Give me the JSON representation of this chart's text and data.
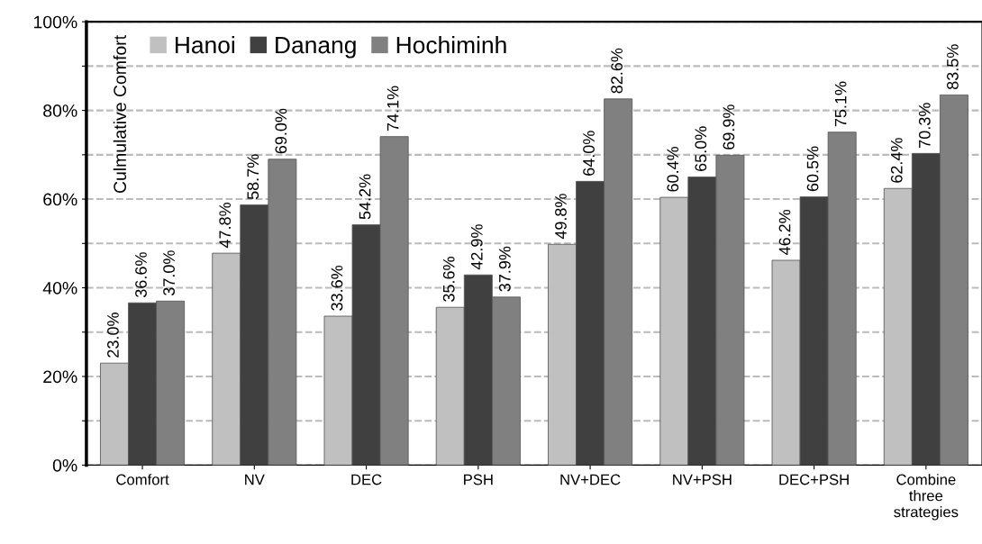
{
  "chart_data": {
    "type": "bar",
    "ylabel": "Culmulative Comfort",
    "categories": [
      "Comfort",
      "NV",
      "DEC",
      "PSH",
      "NV+DEC",
      "NV+PSH",
      "DEC+PSH",
      "Combine\nthree\nstrategies"
    ],
    "series": [
      {
        "name": "Hanoi",
        "color": "#c0c0c0",
        "values": [
          23.0,
          47.8,
          33.6,
          35.6,
          49.8,
          60.4,
          46.2,
          62.4
        ],
        "value_labels": [
          "23.0%",
          "47.8%",
          "33.6%",
          "35.6%",
          "49.8%",
          "60.4%",
          "46.2%",
          "62.4%"
        ]
      },
      {
        "name": "Danang",
        "color": "#404040",
        "values": [
          36.6,
          58.7,
          54.2,
          42.9,
          64.0,
          65.0,
          60.5,
          70.3
        ],
        "value_labels": [
          "36.6%",
          "58.7%",
          "54.2%",
          "42.9%",
          "64.0%",
          "65.0%",
          "60.5%",
          "70.3%"
        ]
      },
      {
        "name": "Hochiminh",
        "color": "#808080",
        "values": [
          37.0,
          69.0,
          74.1,
          37.9,
          82.6,
          69.9,
          75.1,
          83.5
        ],
        "value_labels": [
          "37.0%",
          "69.0%",
          "74.1%",
          "37.9%",
          "82.6%",
          "69.9%",
          "75.1%",
          "83.5%"
        ]
      }
    ],
    "ylim": [
      0,
      100
    ],
    "yticks": [
      {
        "value": 0,
        "label": "0%"
      },
      {
        "value": 10,
        "label": null
      },
      {
        "value": 20,
        "label": "20%"
      },
      {
        "value": 30,
        "label": null
      },
      {
        "value": 40,
        "label": "40%"
      },
      {
        "value": 50,
        "label": null
      },
      {
        "value": 60,
        "label": "60%"
      },
      {
        "value": 70,
        "label": null
      },
      {
        "value": 80,
        "label": "80%"
      },
      {
        "value": 90,
        "label": null
      },
      {
        "value": 100,
        "label": "100%"
      }
    ],
    "grid": "y",
    "legend": "top left"
  }
}
